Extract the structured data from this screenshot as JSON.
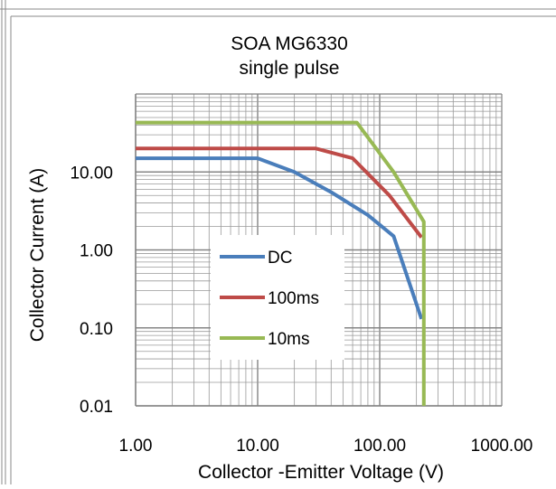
{
  "chart_data": {
    "type": "line",
    "title": "SOA MG6330",
    "subtitle": "single pulse",
    "xlabel": "Collector -Emitter Voltage (V)",
    "ylabel": "Collector Current (A)",
    "x_scale": "log",
    "y_scale": "log",
    "xlim": [
      1,
      1000
    ],
    "ylim": [
      0.01,
      100
    ],
    "x_ticks": [
      1,
      10,
      100,
      1000
    ],
    "x_tick_labels": [
      "1.00",
      "10.00",
      "100.00",
      "1000.00"
    ],
    "y_ticks": [
      0.01,
      0.1,
      1,
      10
    ],
    "y_tick_labels": [
      "0.01",
      "0.10",
      "1.00",
      "10.00"
    ],
    "grid": true,
    "legend_position": "center-left",
    "series": [
      {
        "name": "DC",
        "color": "#4a7ebb",
        "points": [
          [
            1,
            15
          ],
          [
            10,
            15
          ],
          [
            20,
            10
          ],
          [
            40,
            5.5
          ],
          [
            80,
            2.8
          ],
          [
            130,
            1.5
          ],
          [
            220,
            0.13
          ]
        ]
      },
      {
        "name": "100ms",
        "color": "#be4b48",
        "points": [
          [
            1,
            20
          ],
          [
            30,
            20
          ],
          [
            60,
            15
          ],
          [
            120,
            5
          ],
          [
            220,
            1.45
          ]
        ]
      },
      {
        "name": "10ms",
        "color": "#98b954",
        "points": [
          [
            1,
            43
          ],
          [
            65,
            43
          ],
          [
            130,
            10
          ],
          [
            230,
            2.3
          ],
          [
            230,
            0.01
          ]
        ]
      }
    ]
  }
}
